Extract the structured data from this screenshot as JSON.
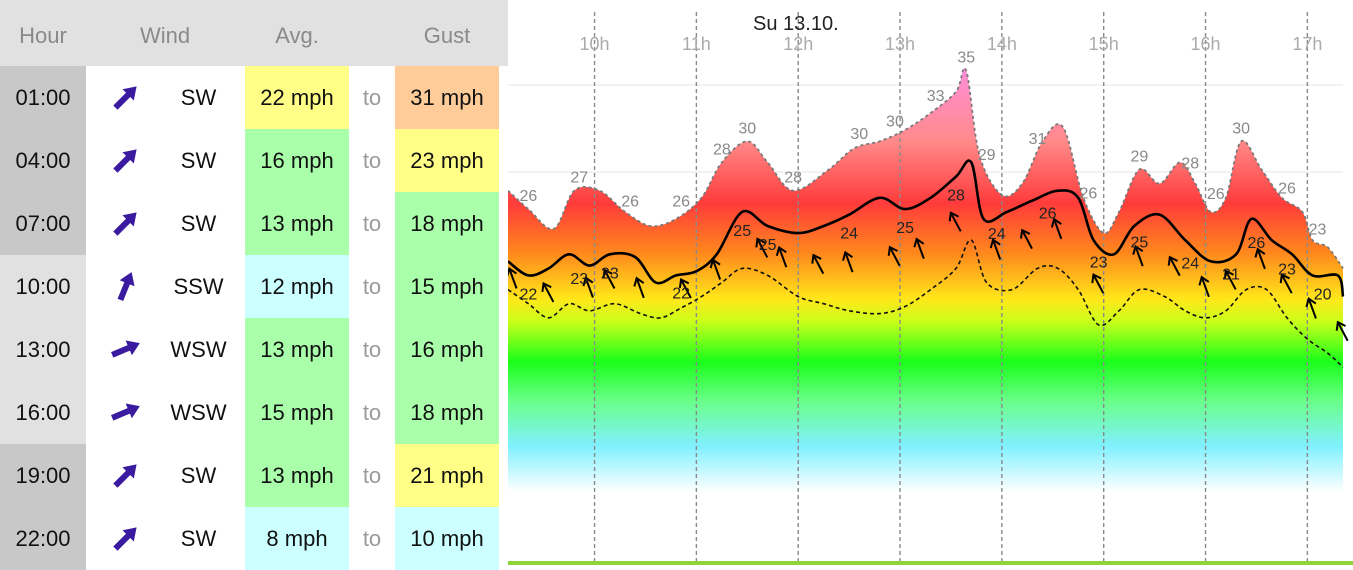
{
  "table": {
    "headers": {
      "hour": "Hour",
      "wind": "Wind",
      "avg": "Avg.",
      "gust": "Gust"
    },
    "to_label": "to",
    "rows": [
      {
        "hour": "01:00",
        "dir": "SW",
        "avg": "22 mph",
        "gust": "31 mph",
        "hour_bg": "#c8c8c8",
        "avg_color": "#ffff88",
        "gust_color": "#ffcc99",
        "arrow_rotation_deg": 45
      },
      {
        "hour": "04:00",
        "dir": "SW",
        "avg": "16 mph",
        "gust": "23 mph",
        "hour_bg": "#c8c8c8",
        "avg_color": "#aaffaa",
        "gust_color": "#ffff88",
        "arrow_rotation_deg": 45
      },
      {
        "hour": "07:00",
        "dir": "SW",
        "avg": "13 mph",
        "gust": "18 mph",
        "hour_bg": "#c8c8c8",
        "avg_color": "#aaffaa",
        "gust_color": "#aaffaa",
        "arrow_rotation_deg": 45
      },
      {
        "hour": "10:00",
        "dir": "SSW",
        "avg": "12 mph",
        "gust": "15 mph",
        "hour_bg": "#e1e1e1",
        "avg_color": "#ccffff",
        "gust_color": "#aaffaa",
        "arrow_rotation_deg": 22
      },
      {
        "hour": "13:00",
        "dir": "WSW",
        "avg": "13 mph",
        "gust": "16 mph",
        "hour_bg": "#e1e1e1",
        "avg_color": "#aaffaa",
        "gust_color": "#aaffaa",
        "arrow_rotation_deg": 67
      },
      {
        "hour": "16:00",
        "dir": "WSW",
        "avg": "15 mph",
        "gust": "18 mph",
        "hour_bg": "#e1e1e1",
        "avg_color": "#aaffaa",
        "gust_color": "#aaffaa",
        "arrow_rotation_deg": 67
      },
      {
        "hour": "19:00",
        "dir": "SW",
        "avg": "13 mph",
        "gust": "21 mph",
        "hour_bg": "#c8c8c8",
        "avg_color": "#aaffaa",
        "gust_color": "#ffff88",
        "arrow_rotation_deg": 45
      },
      {
        "hour": "22:00",
        "dir": "SW",
        "avg": "8 mph",
        "gust": "10 mph",
        "hour_bg": "#c8c8c8",
        "avg_color": "#ccffff",
        "gust_color": "#ccffff",
        "arrow_rotation_deg": 45
      }
    ],
    "arrow_color": "#3a1a9e",
    "arrow_icon": "wind-direction-arrow-icon"
  },
  "chart_data": {
    "type": "area",
    "title": "Su 13.10.",
    "x_unit": "hour",
    "xlim": [
      9.15,
      17.35
    ],
    "ylim": [
      0,
      40
    ],
    "hour_ticks": [
      "10h",
      "11h",
      "12h",
      "13h",
      "14h",
      "15h",
      "16h",
      "17h"
    ],
    "hour_tick_values": [
      10,
      11,
      12,
      13,
      14,
      15,
      16,
      17
    ],
    "horizontal_grid": true,
    "series": [
      {
        "line_style": "dotted-gray",
        "points": [
          [
            9.15,
            26.5
          ],
          [
            9.35,
            25.2
          ],
          [
            9.6,
            23.8
          ],
          [
            9.8,
            26.5
          ],
          [
            10.05,
            26.5
          ],
          [
            10.3,
            25
          ],
          [
            10.55,
            24
          ],
          [
            10.8,
            24.5
          ],
          [
            11.05,
            26
          ],
          [
            11.25,
            28.5
          ],
          [
            11.5,
            30
          ],
          [
            11.7,
            28.5
          ],
          [
            11.95,
            26.5
          ],
          [
            12.3,
            28
          ],
          [
            12.55,
            29.5
          ],
          [
            12.8,
            30
          ],
          [
            13.05,
            30.8
          ],
          [
            13.3,
            32
          ],
          [
            13.55,
            33.5
          ],
          [
            13.65,
            35
          ],
          [
            13.78,
            29
          ],
          [
            14.0,
            26.2
          ],
          [
            14.2,
            27
          ],
          [
            14.4,
            30
          ],
          [
            14.6,
            31
          ],
          [
            14.8,
            26
          ],
          [
            15.0,
            23.5
          ],
          [
            15.15,
            25
          ],
          [
            15.35,
            28
          ],
          [
            15.55,
            27
          ],
          [
            15.75,
            28.5
          ],
          [
            15.9,
            27
          ],
          [
            16.05,
            25
          ],
          [
            16.2,
            26
          ],
          [
            16.35,
            30
          ],
          [
            16.55,
            28
          ],
          [
            16.75,
            26
          ],
          [
            16.95,
            25
          ],
          [
            17.05,
            23
          ],
          [
            17.2,
            22.5
          ],
          [
            17.35,
            21
          ]
        ],
        "labels": [
          {
            "x": 9.35,
            "v": "26"
          },
          {
            "x": 9.85,
            "v": "27"
          },
          {
            "x": 10.35,
            "v": "26"
          },
          {
            "x": 10.85,
            "v": "26"
          },
          {
            "x": 11.25,
            "v": "28"
          },
          {
            "x": 11.5,
            "v": "30"
          },
          {
            "x": 11.95,
            "v": "28"
          },
          {
            "x": 12.6,
            "v": "30"
          },
          {
            "x": 12.95,
            "v": "30"
          },
          {
            "x": 13.35,
            "v": "33"
          },
          {
            "x": 13.65,
            "v": "35"
          },
          {
            "x": 13.85,
            "v": "29"
          },
          {
            "x": 14.35,
            "v": "31"
          },
          {
            "x": 14.85,
            "v": "26"
          },
          {
            "x": 15.35,
            "v": "29"
          },
          {
            "x": 15.85,
            "v": "28"
          },
          {
            "x": 16.1,
            "v": "26"
          },
          {
            "x": 16.35,
            "v": "30"
          },
          {
            "x": 16.8,
            "v": "26"
          },
          {
            "x": 17.1,
            "v": "23"
          }
        ]
      },
      {
        "line_style": "solid-black",
        "points": [
          [
            9.15,
            21.5
          ],
          [
            9.35,
            20.5
          ],
          [
            9.55,
            21
          ],
          [
            9.75,
            22
          ],
          [
            9.95,
            21.2
          ],
          [
            10.15,
            22
          ],
          [
            10.4,
            21.8
          ],
          [
            10.6,
            20
          ],
          [
            10.8,
            20.5
          ],
          [
            11.0,
            20.8
          ],
          [
            11.2,
            22
          ],
          [
            11.45,
            25
          ],
          [
            11.7,
            24
          ],
          [
            12.0,
            23.5
          ],
          [
            12.25,
            24
          ],
          [
            12.5,
            24.8
          ],
          [
            12.8,
            26
          ],
          [
            13.05,
            25.2
          ],
          [
            13.3,
            26
          ],
          [
            13.55,
            27.5
          ],
          [
            13.7,
            28.5
          ],
          [
            13.82,
            24.5
          ],
          [
            14.05,
            25
          ],
          [
            14.3,
            25.8
          ],
          [
            14.55,
            26.5
          ],
          [
            14.75,
            26
          ],
          [
            14.9,
            23
          ],
          [
            15.1,
            22
          ],
          [
            15.3,
            24
          ],
          [
            15.55,
            24.8
          ],
          [
            15.8,
            23
          ],
          [
            16.05,
            21.5
          ],
          [
            16.3,
            22
          ],
          [
            16.45,
            24.5
          ],
          [
            16.65,
            23
          ],
          [
            16.85,
            22
          ],
          [
            17.05,
            20.5
          ],
          [
            17.3,
            20.5
          ],
          [
            17.35,
            19
          ]
        ],
        "labels": [
          {
            "x": 9.35,
            "v": "22"
          },
          {
            "x": 9.85,
            "v": "23"
          },
          {
            "x": 10.15,
            "v": "23"
          },
          {
            "x": 10.85,
            "v": "22"
          },
          {
            "x": 11.45,
            "v": "25"
          },
          {
            "x": 11.7,
            "v": "25"
          },
          {
            "x": 12.5,
            "v": "24"
          },
          {
            "x": 13.05,
            "v": "25"
          },
          {
            "x": 13.55,
            "v": "28"
          },
          {
            "x": 13.95,
            "v": "24"
          },
          {
            "x": 14.45,
            "v": "26"
          },
          {
            "x": 14.95,
            "v": "23"
          },
          {
            "x": 15.35,
            "v": "25"
          },
          {
            "x": 15.85,
            "v": "24"
          },
          {
            "x": 16.25,
            "v": "21"
          },
          {
            "x": 16.5,
            "v": "26"
          },
          {
            "x": 16.8,
            "v": "23"
          },
          {
            "x": 17.15,
            "v": "20"
          }
        ]
      },
      {
        "line_style": "dotted-black",
        "points": [
          [
            9.15,
            19.5
          ],
          [
            9.35,
            18.5
          ],
          [
            9.55,
            17.5
          ],
          [
            9.75,
            18.5
          ],
          [
            9.95,
            18
          ],
          [
            10.2,
            18.5
          ],
          [
            10.45,
            17.8
          ],
          [
            10.65,
            17.5
          ],
          [
            10.85,
            18.2
          ],
          [
            11.05,
            19
          ],
          [
            11.25,
            20
          ],
          [
            11.45,
            21
          ],
          [
            11.7,
            20.5
          ],
          [
            12.0,
            19
          ],
          [
            12.25,
            18.5
          ],
          [
            12.5,
            18
          ],
          [
            12.8,
            17.8
          ],
          [
            13.05,
            18.3
          ],
          [
            13.3,
            19.5
          ],
          [
            13.55,
            21
          ],
          [
            13.7,
            23
          ],
          [
            13.85,
            20
          ],
          [
            14.1,
            19.5
          ],
          [
            14.35,
            21
          ],
          [
            14.55,
            21
          ],
          [
            14.75,
            19.5
          ],
          [
            14.95,
            17
          ],
          [
            15.15,
            18
          ],
          [
            15.35,
            19.5
          ],
          [
            15.6,
            19
          ],
          [
            15.8,
            18
          ],
          [
            16.0,
            17.5
          ],
          [
            16.2,
            18
          ],
          [
            16.4,
            19.5
          ],
          [
            16.6,
            19.5
          ],
          [
            16.8,
            17.5
          ],
          [
            17.0,
            16
          ],
          [
            17.2,
            15
          ],
          [
            17.35,
            14
          ]
        ]
      }
    ],
    "arrow_positions": [
      9.2,
      9.55,
      9.95,
      10.15,
      10.45,
      10.9,
      11.2,
      11.65,
      11.85,
      12.2,
      12.5,
      12.95,
      13.2,
      13.55,
      13.95,
      14.25,
      14.55,
      14.95,
      15.35,
      15.7,
      16.0,
      16.25,
      16.55,
      16.8,
      17.05,
      17.35
    ]
  }
}
